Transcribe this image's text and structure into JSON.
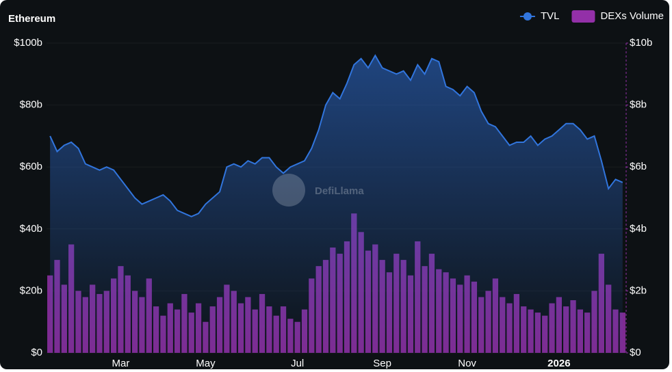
{
  "chart_data": {
    "type": "combo",
    "title": "Ethereum",
    "watermark": "DefiLlama",
    "categories": [
      null,
      null,
      null,
      null,
      null,
      null,
      null,
      null,
      null,
      null,
      "Mar",
      null,
      null,
      null,
      null,
      null,
      null,
      null,
      null,
      null,
      null,
      null,
      "May",
      null,
      null,
      null,
      null,
      null,
      null,
      null,
      null,
      null,
      null,
      null,
      null,
      "Jul",
      null,
      null,
      null,
      null,
      null,
      null,
      null,
      null,
      null,
      null,
      null,
      "Sep",
      null,
      null,
      null,
      null,
      null,
      null,
      null,
      null,
      null,
      null,
      null,
      "Nov",
      null,
      null,
      null,
      null,
      null,
      null,
      null,
      null,
      null,
      null,
      null,
      null,
      "2026",
      null,
      null,
      null,
      null,
      null,
      null,
      null,
      null,
      null
    ],
    "series": [
      {
        "name": "TVL",
        "type": "line",
        "color": "#3175dd",
        "values": [
          70,
          65,
          67,
          68,
          66,
          61,
          60,
          59,
          60,
          59,
          56,
          53,
          50,
          48,
          49,
          50,
          51,
          49,
          46,
          45,
          44,
          45,
          48,
          50,
          52,
          60,
          61,
          60,
          62,
          61,
          63,
          63,
          60,
          58,
          60,
          61,
          62,
          66,
          72,
          80,
          84,
          82,
          87,
          93,
          95,
          92,
          96,
          92,
          91,
          90,
          91,
          88,
          93,
          90,
          95,
          94,
          86,
          85,
          83,
          86,
          84,
          78,
          74,
          73,
          70,
          67,
          68,
          68,
          70,
          67,
          69,
          70,
          72,
          74,
          74,
          72,
          69,
          70,
          62,
          53,
          56,
          55
        ]
      },
      {
        "name": "DEXs Volume",
        "type": "bar",
        "axis": "y2",
        "color": "#9330a8",
        "values": [
          2.5,
          3.0,
          2.2,
          3.5,
          2.0,
          1.8,
          2.2,
          1.9,
          2.0,
          2.4,
          2.8,
          2.5,
          2.0,
          1.8,
          2.4,
          1.5,
          1.2,
          1.6,
          1.4,
          1.9,
          1.3,
          1.6,
          1.0,
          1.5,
          1.8,
          2.2,
          2.0,
          1.6,
          1.8,
          1.4,
          1.9,
          1.5,
          1.2,
          1.5,
          1.1,
          1.0,
          1.4,
          2.4,
          2.8,
          3.0,
          3.4,
          3.2,
          3.6,
          4.5,
          3.9,
          3.3,
          3.5,
          3.0,
          2.6,
          3.2,
          3.0,
          2.5,
          3.6,
          2.8,
          3.2,
          2.7,
          2.6,
          2.4,
          2.2,
          2.5,
          2.3,
          1.8,
          2.0,
          2.4,
          1.8,
          1.6,
          1.9,
          1.5,
          1.4,
          1.3,
          1.2,
          1.6,
          1.8,
          1.5,
          1.7,
          1.4,
          1.3,
          2.0,
          3.2,
          2.2,
          1.4,
          1.3
        ]
      }
    ],
    "ylim": [
      0,
      100
    ],
    "yticks": [
      {
        "value": 0,
        "label": "$0"
      },
      {
        "value": 20,
        "label": "$20b"
      },
      {
        "value": 40,
        "label": "$40b"
      },
      {
        "value": 60,
        "label": "$60b"
      },
      {
        "value": 80,
        "label": "$80b"
      },
      {
        "value": 100,
        "label": "$100b"
      }
    ],
    "y2lim": [
      0,
      10
    ],
    "y2ticks": [
      {
        "value": 0,
        "label": "$0"
      },
      {
        "value": 2,
        "label": "$2b"
      },
      {
        "value": 4,
        "label": "$4b"
      },
      {
        "value": 6,
        "label": "$6b"
      },
      {
        "value": 8,
        "label": "$8b"
      },
      {
        "value": 10,
        "label": "$10b"
      }
    ],
    "grid": true,
    "legend": "top-right"
  }
}
